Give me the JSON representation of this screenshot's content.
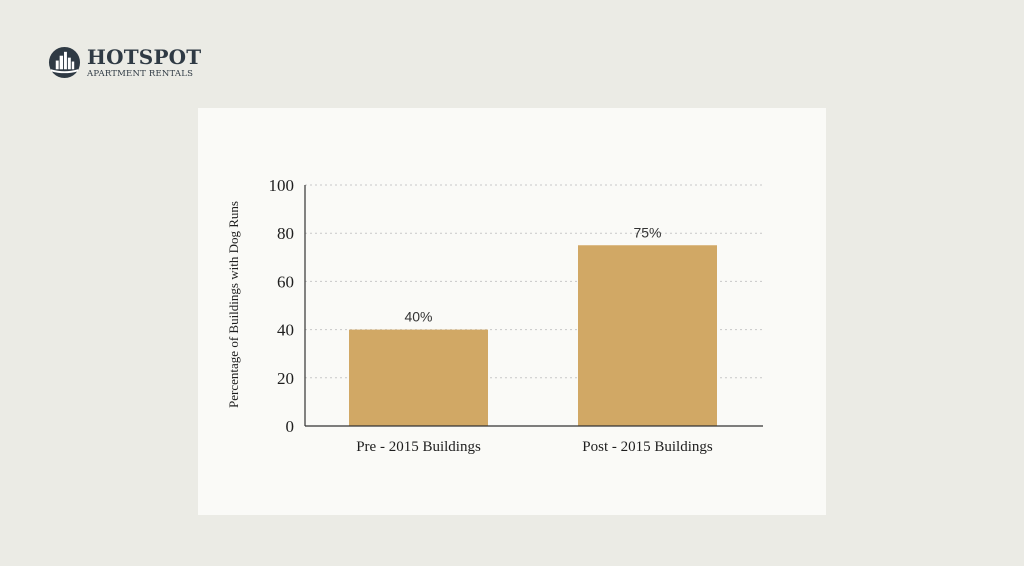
{
  "brand": {
    "name": "HOTSPOT",
    "tagline": "APARTMENT RENTALS",
    "logo_icon": "city-skyline-icon"
  },
  "colors": {
    "bar": "#d1a865",
    "background": "#ebebe5",
    "card": "#fafaf7",
    "brand": "#2f3a44",
    "grid": "#c8c8c8",
    "axis": "#333333"
  },
  "chart_data": {
    "type": "bar",
    "categories": [
      "Pre - 2015 Buildings",
      "Post - 2015 Buildings"
    ],
    "values": [
      40,
      75
    ],
    "data_labels": [
      "40%",
      "75%"
    ],
    "ylabel": "Percentage of Buildings with Dog Runs",
    "ylim": [
      0,
      100
    ],
    "yticks": [
      0,
      20,
      40,
      60,
      80,
      100
    ],
    "grid": true,
    "grid_style": "dashed"
  }
}
